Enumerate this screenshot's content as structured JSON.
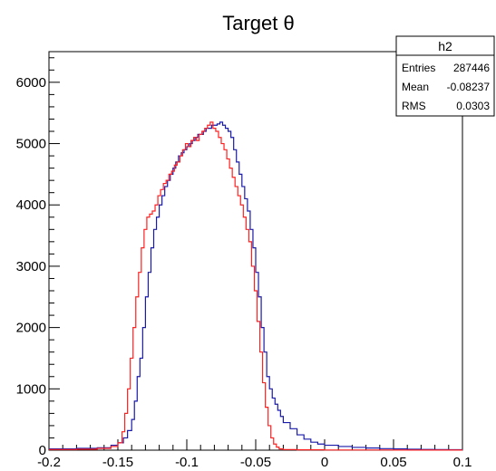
{
  "chart_data": {
    "type": "line",
    "title": "Target θ",
    "xlabel": "",
    "ylabel": "",
    "xlim": [
      -0.2,
      0.1
    ],
    "ylim": [
      0,
      6500
    ],
    "grid": false,
    "xticks": [
      "-0.2",
      "-0.15",
      "-0.1",
      "-0.05",
      "0",
      "0.05",
      "0.1"
    ],
    "yticks": [
      "0",
      "1000",
      "2000",
      "3000",
      "4000",
      "5000",
      "6000"
    ],
    "stats_box": {
      "name": "h2",
      "placement": "top-right",
      "rows": [
        {
          "label": "Entries",
          "value": "287446"
        },
        {
          "label": "Mean",
          "value": "-0.08237"
        },
        {
          "label": "RMS",
          "value": "0.0303"
        }
      ]
    },
    "series": [
      {
        "color": "#1a1aa8",
        "style": "step",
        "x": [
          -0.2,
          -0.18,
          -0.165,
          -0.155,
          -0.15,
          -0.146,
          -0.143,
          -0.14,
          -0.138,
          -0.136,
          -0.134,
          -0.132,
          -0.13,
          -0.128,
          -0.126,
          -0.124,
          -0.122,
          -0.12,
          -0.118,
          -0.116,
          -0.114,
          -0.112,
          -0.11,
          -0.108,
          -0.106,
          -0.104,
          -0.102,
          -0.1,
          -0.098,
          -0.096,
          -0.094,
          -0.092,
          -0.09,
          -0.088,
          -0.086,
          -0.084,
          -0.082,
          -0.08,
          -0.078,
          -0.076,
          -0.074,
          -0.072,
          -0.07,
          -0.068,
          -0.066,
          -0.064,
          -0.062,
          -0.06,
          -0.058,
          -0.056,
          -0.054,
          -0.052,
          -0.05,
          -0.048,
          -0.046,
          -0.044,
          -0.042,
          -0.04,
          -0.038,
          -0.036,
          -0.034,
          -0.032,
          -0.03,
          -0.025,
          -0.02,
          -0.015,
          -0.01,
          -0.005,
          0.0,
          0.01,
          0.02,
          0.03,
          0.04,
          0.05,
          0.06,
          0.07,
          0.08,
          0.09,
          0.1
        ],
        "values": [
          20,
          30,
          40,
          80,
          120,
          200,
          320,
          500,
          800,
          1200,
          1500,
          2000,
          2500,
          2900,
          3300,
          3600,
          3800,
          4000,
          4150,
          4300,
          4400,
          4500,
          4600,
          4700,
          4800,
          4850,
          4900,
          4950,
          5000,
          5050,
          5100,
          5150,
          5150,
          5200,
          5250,
          5250,
          5300,
          5300,
          5320,
          5350,
          5300,
          5250,
          5200,
          5100,
          4900,
          4700,
          4500,
          4300,
          4100,
          3900,
          3600,
          3300,
          2900,
          2500,
          2000,
          1600,
          1200,
          1000,
          850,
          750,
          650,
          550,
          450,
          350,
          250,
          180,
          130,
          100,
          80,
          60,
          45,
          35,
          25,
          20,
          15,
          12,
          10,
          8,
          6
        ]
      },
      {
        "color": "#ff2020",
        "style": "step",
        "x": [
          -0.2,
          -0.18,
          -0.165,
          -0.155,
          -0.15,
          -0.147,
          -0.145,
          -0.143,
          -0.141,
          -0.139,
          -0.137,
          -0.135,
          -0.133,
          -0.131,
          -0.129,
          -0.127,
          -0.125,
          -0.123,
          -0.121,
          -0.119,
          -0.117,
          -0.115,
          -0.113,
          -0.111,
          -0.109,
          -0.107,
          -0.105,
          -0.103,
          -0.101,
          -0.099,
          -0.097,
          -0.095,
          -0.093,
          -0.091,
          -0.089,
          -0.087,
          -0.085,
          -0.083,
          -0.081,
          -0.079,
          -0.077,
          -0.075,
          -0.073,
          -0.071,
          -0.069,
          -0.067,
          -0.065,
          -0.063,
          -0.061,
          -0.059,
          -0.057,
          -0.055,
          -0.053,
          -0.051,
          -0.049,
          -0.047,
          -0.045,
          -0.043,
          -0.041,
          -0.039,
          -0.037,
          -0.035,
          -0.033,
          -0.03,
          -0.02,
          0.0,
          0.05,
          0.1
        ],
        "values": [
          10,
          15,
          30,
          60,
          120,
          300,
          600,
          1000,
          1500,
          2000,
          2500,
          2900,
          3300,
          3600,
          3800,
          3850,
          3900,
          4000,
          4150,
          4250,
          4350,
          4400,
          4500,
          4550,
          4650,
          4700,
          4800,
          4900,
          5000,
          4950,
          5050,
          5100,
          5050,
          5150,
          5200,
          5250,
          5300,
          5350,
          5250,
          5200,
          5100,
          5000,
          4900,
          4750,
          4600,
          4450,
          4300,
          4150,
          4000,
          3800,
          3600,
          3400,
          3000,
          2600,
          2100,
          1600,
          1100,
          700,
          400,
          200,
          100,
          50,
          20,
          10,
          5,
          3,
          2,
          1
        ]
      }
    ]
  }
}
